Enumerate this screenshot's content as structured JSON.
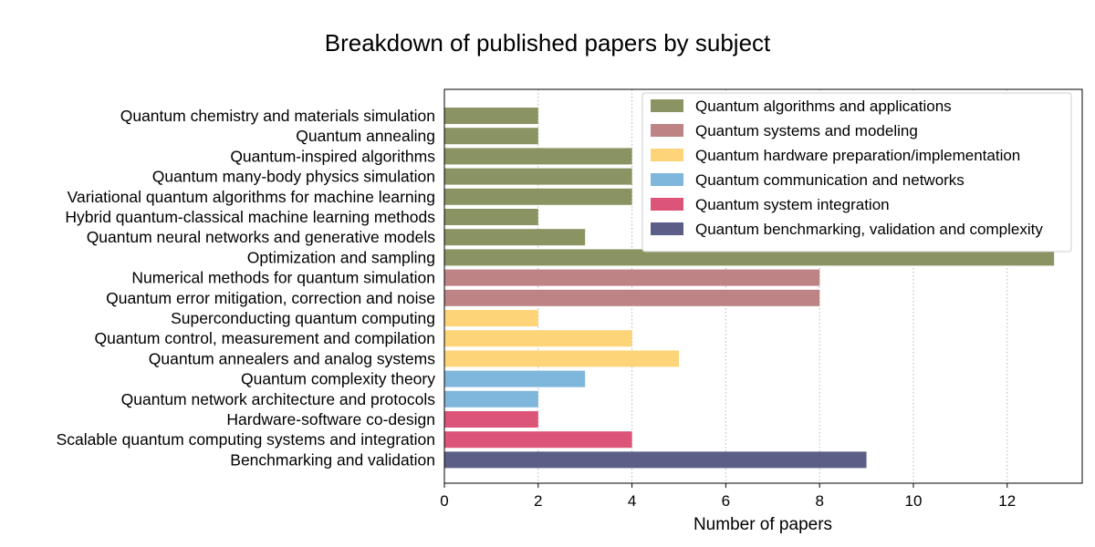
{
  "chart_data": {
    "type": "bar",
    "orientation": "horizontal",
    "title": "Breakdown of published papers by subject",
    "xlabel": "Number of papers",
    "ylabel": "",
    "xlim": [
      0,
      13.6
    ],
    "xticks": [
      0,
      2,
      4,
      6,
      8,
      10,
      12
    ],
    "grid": "x-dotted",
    "legend_position": "top-right",
    "groups": [
      {
        "name": "Quantum algorithms and applications",
        "color": "#8a9462"
      },
      {
        "name": "Quantum systems and modeling",
        "color": "#bd8385"
      },
      {
        "name": "Quantum hardware preparation/implementation",
        "color": "#fdd478"
      },
      {
        "name": "Quantum communication and networks",
        "color": "#7fb6dc"
      },
      {
        "name": "Quantum system integration",
        "color": "#dc5478"
      },
      {
        "name": "Quantum benchmarking, validation and complexity",
        "color": "#5b5e86"
      }
    ],
    "bars": [
      {
        "label": "Quantum chemistry and materials simulation",
        "value": 2,
        "group": 0
      },
      {
        "label": "Quantum annealing",
        "value": 2,
        "group": 0
      },
      {
        "label": "Quantum-inspired algorithms",
        "value": 4,
        "group": 0
      },
      {
        "label": "Quantum many-body physics simulation",
        "value": 4,
        "group": 0
      },
      {
        "label": "Variational quantum algorithms for machine learning",
        "value": 4,
        "group": 0
      },
      {
        "label": "Hybrid quantum-classical machine learning methods",
        "value": 2,
        "group": 0
      },
      {
        "label": "Quantum neural networks and generative models",
        "value": 3,
        "group": 0
      },
      {
        "label": "Optimization and sampling",
        "value": 13,
        "group": 0
      },
      {
        "label": "Numerical methods for quantum simulation",
        "value": 8,
        "group": 1
      },
      {
        "label": "Quantum error mitigation, correction and noise",
        "value": 8,
        "group": 1
      },
      {
        "label": "Superconducting quantum computing",
        "value": 2,
        "group": 2
      },
      {
        "label": "Quantum control, measurement and compilation",
        "value": 4,
        "group": 2
      },
      {
        "label": "Quantum annealers and analog systems",
        "value": 5,
        "group": 2
      },
      {
        "label": "Quantum complexity theory",
        "value": 3,
        "group": 3
      },
      {
        "label": "Quantum network architecture and protocols",
        "value": 2,
        "group": 3
      },
      {
        "label": "Hardware-software co-design",
        "value": 2,
        "group": 4
      },
      {
        "label": "Scalable quantum computing systems and integration",
        "value": 4,
        "group": 4
      },
      {
        "label": "Benchmarking and validation",
        "value": 9,
        "group": 5
      }
    ]
  }
}
